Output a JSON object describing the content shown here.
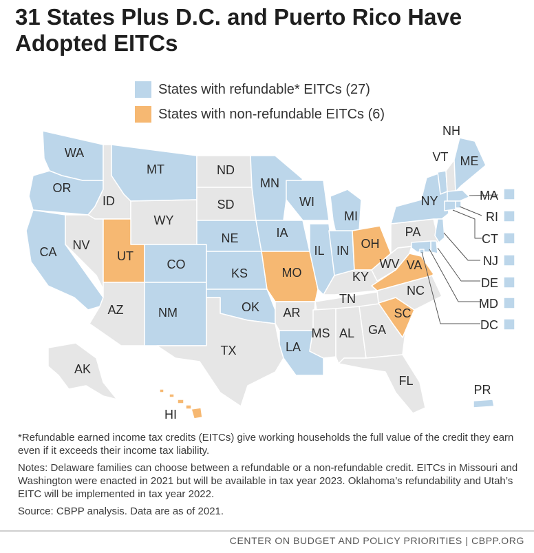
{
  "title": "31 States Plus D.C. and Puerto Rico Have Adopted EITCs",
  "colors": {
    "refundable": "#bcd6ea",
    "nonrefundable": "#f6b872",
    "none": "#e6e6e6",
    "border": "#ffffff"
  },
  "legend": {
    "refundable": "States with refundable* EITCs (27)",
    "nonrefundable": "States with non-refundable EITCs (6)"
  },
  "states": {
    "WA": "refundable",
    "OR": "refundable",
    "CA": "refundable",
    "MT": "refundable",
    "CO": "refundable",
    "NM": "refundable",
    "NE": "refundable",
    "KS": "refundable",
    "OK": "refundable",
    "MN": "refundable",
    "IA": "refundable",
    "WI": "refundable",
    "IL": "refundable",
    "MI": "refundable",
    "IN": "refundable",
    "LA": "refundable",
    "NY": "refundable",
    "VT": "refundable",
    "ME": "refundable",
    "MA": "refundable",
    "RI": "refundable",
    "CT": "refundable",
    "NJ": "refundable",
    "DE": "refundable",
    "MD": "refundable",
    "DC": "refundable",
    "PR": "refundable",
    "UT": "nonrefundable",
    "MO": "nonrefundable",
    "OH": "nonrefundable",
    "VA": "nonrefundable",
    "SC": "nonrefundable",
    "HI": "nonrefundable",
    "ID": "none",
    "NV": "none",
    "AZ": "none",
    "WY": "none",
    "ND": "none",
    "SD": "none",
    "TX": "none",
    "AR": "none",
    "MS": "none",
    "AL": "none",
    "GA": "none",
    "FL": "none",
    "TN": "none",
    "KY": "none",
    "WV": "none",
    "NC": "none",
    "PA": "none",
    "NH": "none",
    "AK": "none"
  },
  "side_labels": [
    "MA",
    "RI",
    "CT",
    "NJ",
    "DE",
    "MD",
    "DC"
  ],
  "notes": {
    "footnote": "*Refundable earned income tax credits (EITCs) give working households the full value of the credit they earn even if it exceeds their income tax liability.",
    "notes": "Notes: Delaware families can choose between a refundable or a non-refundable credit. EITCs in Missouri and Washington were enacted in 2021 but will be available in tax year 2023. Oklahoma’s refundability and Utah’s EITC will be implemented in tax year 2022.",
    "source": "Source: CBPP analysis. Data are as of 2021."
  },
  "footer": "CENTER ON BUDGET AND POLICY PRIORITIES | CBPP.ORG"
}
